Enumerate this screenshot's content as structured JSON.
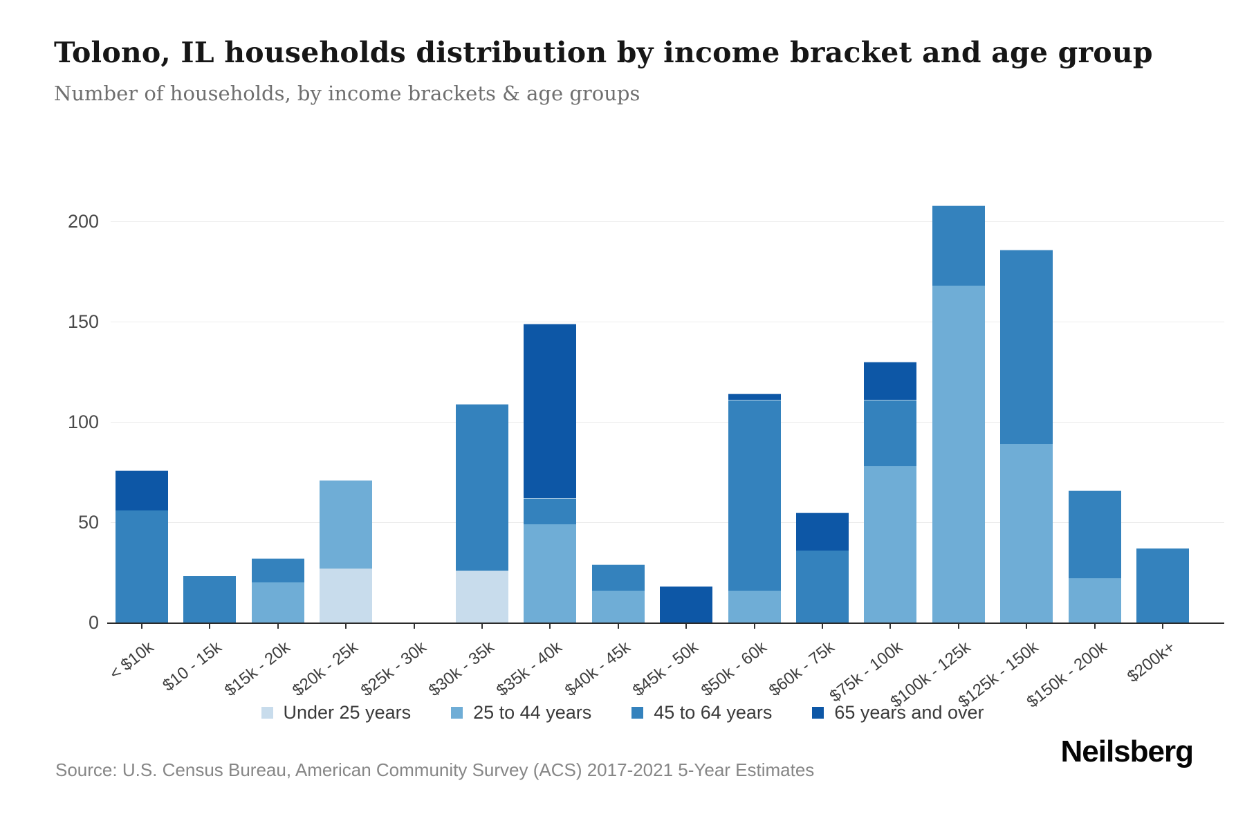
{
  "header": {
    "title": "Tolono, IL households distribution by income bracket and age group",
    "subtitle": "Number of households, by income brackets & age groups"
  },
  "chart_data": {
    "type": "bar",
    "stacked": true,
    "title": "Tolono, IL households distribution by income bracket and age group",
    "xlabel": "",
    "ylabel": "",
    "ylim": [
      0,
      200
    ],
    "yticks": [
      0,
      50,
      100,
      150,
      200
    ],
    "grid": true,
    "legend_position": "bottom",
    "categories": [
      "< $10k",
      "$10 - 15k",
      "$15k - 20k",
      "$20k - 25k",
      "$25k - 30k",
      "$30k - 35k",
      "$35k - 40k",
      "$40k - 45k",
      "$45k - 50k",
      "$50k - 60k",
      "$60k - 75k",
      "$75k - 100k",
      "$100k - 125k",
      "$125k - 150k",
      "$150k - 200k",
      "$200k+"
    ],
    "series": [
      {
        "name": "Under 25 years",
        "color": "#c8dcec",
        "values": [
          0,
          0,
          0,
          27,
          0,
          26,
          0,
          0,
          0,
          0,
          0,
          0,
          0,
          0,
          0,
          0
        ]
      },
      {
        "name": "25 to 44 years",
        "color": "#6fadd6",
        "values": [
          0,
          0,
          20,
          44,
          0,
          0,
          49,
          16,
          0,
          16,
          0,
          78,
          168,
          89,
          22,
          0
        ]
      },
      {
        "name": "45 to 64 years",
        "color": "#3482bd",
        "values": [
          56,
          23,
          12,
          0,
          0,
          83,
          13,
          13,
          0,
          95,
          36,
          33,
          40,
          97,
          44,
          37
        ]
      },
      {
        "name": "65 years and over",
        "color": "#0d57a6",
        "values": [
          20,
          0,
          0,
          0,
          0,
          0,
          87,
          0,
          18,
          3,
          19,
          19,
          0,
          0,
          0,
          0
        ]
      }
    ],
    "totals": [
      76,
      23,
      32,
      71,
      0,
      109,
      149,
      29,
      18,
      114,
      55,
      130,
      208,
      186,
      66,
      37
    ]
  },
  "footer": {
    "source": "Source: U.S. Census Bureau, American Community Survey (ACS) 2017-2021 5-Year Estimates",
    "brand": "Neilsberg"
  }
}
